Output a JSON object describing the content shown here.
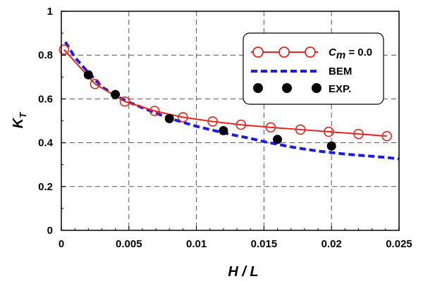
{
  "chart_data": {
    "type": "line",
    "xlabel": "H / L",
    "ylabel": "K",
    "ylabel_subscript": "T",
    "xlim": [
      0,
      0.025
    ],
    "ylim": [
      0,
      1
    ],
    "x_ticks": [
      "0",
      "0.005",
      "0.01",
      "0.015",
      "0.02",
      "0.025"
    ],
    "y_ticks": [
      "0",
      "0.2",
      "0.4",
      "0.6",
      "0.8",
      "1"
    ],
    "grid": "dashed",
    "legend_position": "top-right",
    "series": [
      {
        "name_prefix": "C",
        "name_subscript": "m",
        "name_suffix": " = 0.0",
        "style": "solid-line-open-circle",
        "color": "#e8221c",
        "x": [
          0.0002,
          0.0025,
          0.0047,
          0.0069,
          0.009,
          0.0112,
          0.0133,
          0.0155,
          0.0177,
          0.0198,
          0.022,
          0.0241
        ],
        "y": [
          0.825,
          0.668,
          0.588,
          0.545,
          0.516,
          0.497,
          0.482,
          0.47,
          0.46,
          0.45,
          0.44,
          0.43
        ]
      },
      {
        "name": "BEM",
        "style": "dashed-line",
        "color": "#1a1aee",
        "x": [
          0.0003,
          0.001,
          0.002,
          0.003,
          0.004,
          0.005,
          0.006,
          0.007,
          0.008,
          0.009,
          0.01,
          0.011,
          0.012,
          0.013,
          0.014,
          0.015,
          0.016,
          0.017,
          0.018,
          0.019,
          0.02,
          0.021,
          0.022,
          0.023,
          0.024,
          0.025
        ],
        "y": [
          0.86,
          0.79,
          0.72,
          0.655,
          0.615,
          0.585,
          0.56,
          0.535,
          0.512,
          0.493,
          0.475,
          0.46,
          0.445,
          0.432,
          0.42,
          0.405,
          0.393,
          0.381,
          0.371,
          0.362,
          0.355,
          0.348,
          0.343,
          0.338,
          0.333,
          0.326
        ]
      },
      {
        "name": "EXP.",
        "style": "filled-circle",
        "color": "#000000",
        "x": [
          0.002,
          0.004,
          0.008,
          0.012,
          0.016,
          0.02
        ],
        "y": [
          0.71,
          0.62,
          0.51,
          0.455,
          0.415,
          0.385
        ]
      }
    ]
  }
}
